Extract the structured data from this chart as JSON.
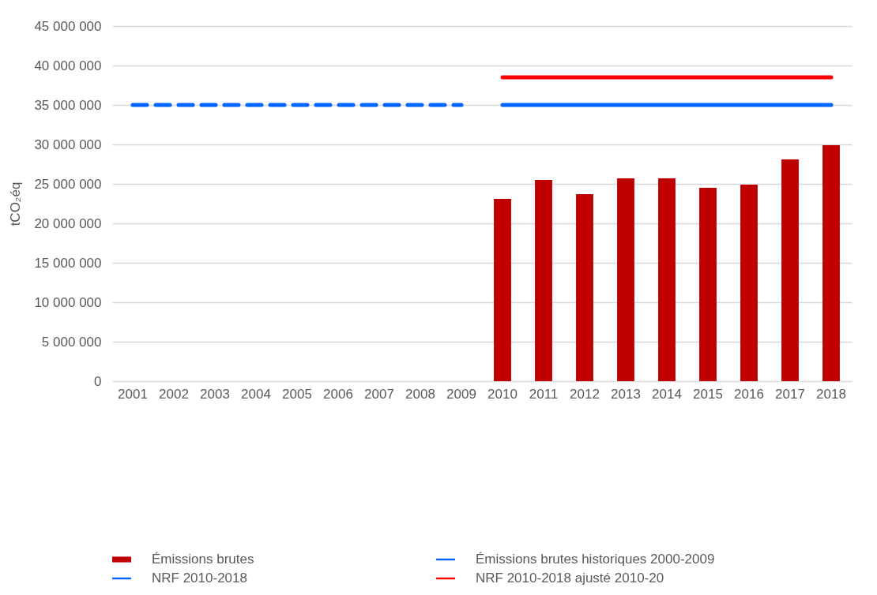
{
  "chart_data": {
    "type": "bar",
    "ylabel": "tCO₂éq",
    "categories": [
      "2001",
      "2002",
      "2003",
      "2004",
      "2005",
      "2006",
      "2007",
      "2008",
      "2009",
      "2010",
      "2011",
      "2012",
      "2013",
      "2014",
      "2015",
      "2016",
      "2017",
      "2018"
    ],
    "series": [
      {
        "name": "Émissions brutes",
        "color": "#c00000",
        "values": [
          null,
          null,
          null,
          null,
          null,
          null,
          null,
          null,
          null,
          23100000,
          25500000,
          23700000,
          25700000,
          25700000,
          24500000,
          24900000,
          28100000,
          29900000
        ]
      },
      {
        "name": "Émissions brutes historiques 2000-2009",
        "type": "line",
        "color": "#0066ff",
        "line_style": "dashed",
        "values": [
          35000000,
          35000000,
          35000000,
          35000000,
          35000000,
          35000000,
          35000000,
          35000000,
          35000000,
          null,
          null,
          null,
          null,
          null,
          null,
          null,
          null,
          null
        ]
      },
      {
        "name": "NRF 2010-2018",
        "type": "line",
        "color": "#0066ff",
        "line_style": "solid",
        "values": [
          null,
          null,
          null,
          null,
          null,
          null,
          null,
          null,
          null,
          35000000,
          35000000,
          35000000,
          35000000,
          35000000,
          35000000,
          35000000,
          35000000,
          35000000
        ]
      },
      {
        "name": "NRF 2010-2018  ajusté 2010-20",
        "type": "line",
        "color": "#ff0000",
        "line_style": "solid",
        "values": [
          null,
          null,
          null,
          null,
          null,
          null,
          null,
          null,
          null,
          38500000,
          38500000,
          38500000,
          38500000,
          38500000,
          38500000,
          38500000,
          38500000,
          38500000
        ]
      }
    ],
    "ylim": [
      0,
      45000000
    ],
    "yticks": [
      {
        "value": 0,
        "label": "0"
      },
      {
        "value": 5000000,
        "label": "5 000 000"
      },
      {
        "value": 10000000,
        "label": "10 000 000"
      },
      {
        "value": 15000000,
        "label": "15 000 000"
      },
      {
        "value": 20000000,
        "label": "20 000 000"
      },
      {
        "value": 25000000,
        "label": "25 000 000"
      },
      {
        "value": 30000000,
        "label": "30 000 000"
      },
      {
        "value": 35000000,
        "label": "35 000 000"
      },
      {
        "value": 40000000,
        "label": "40 000 000"
      },
      {
        "value": 45000000,
        "label": "45 000 000"
      }
    ],
    "grid": "y",
    "legend": "bottom"
  }
}
